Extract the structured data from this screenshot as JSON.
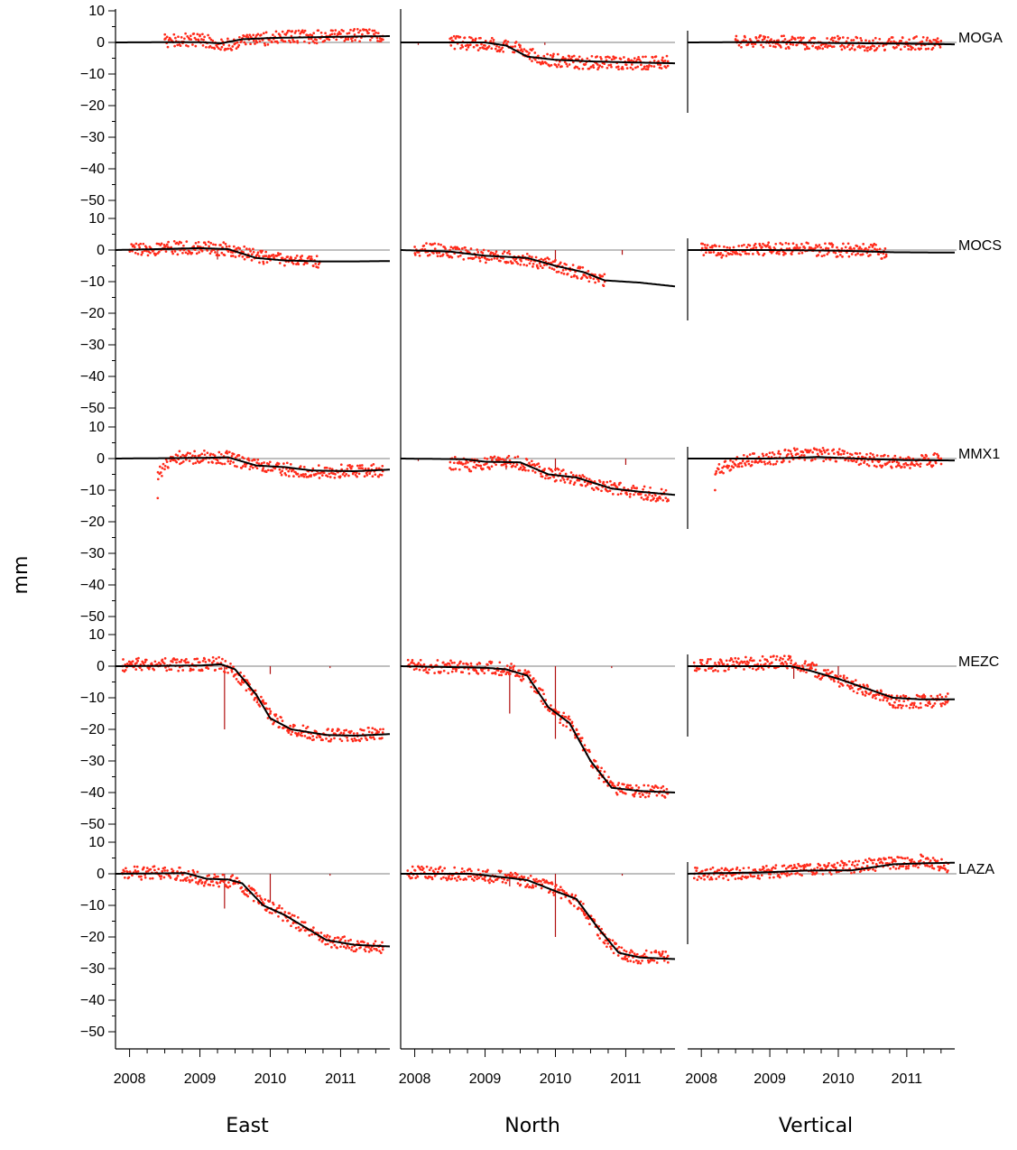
{
  "chart_data": {
    "type": "scatter",
    "ylabel": "mm",
    "columns": [
      "East",
      "North",
      "Vertical"
    ],
    "stations": [
      "MOGA",
      "MOCS",
      "MMX1",
      "MEZC",
      "LAZA"
    ],
    "x_tick_labels": [
      "2008",
      "2009",
      "2010",
      "2011"
    ],
    "x_ticks": [
      2008,
      2009,
      2010,
      2011
    ],
    "xlim": [
      2007.8,
      2011.7
    ],
    "y_ticks": [
      10,
      0,
      -10,
      -20,
      -30,
      -40,
      -50
    ],
    "y_tick_labels": [
      "10",
      "0",
      "−10",
      "−20",
      "−30",
      "−40",
      "−50"
    ],
    "ylim_per_station": [
      -50,
      10
    ],
    "grid": false,
    "colors": {
      "observations": "#ff2a1a",
      "model": "#000000",
      "offsets": "#b01010",
      "axes": "#000000"
    },
    "series": [
      {
        "station": "MOGA",
        "component": "East",
        "model": [
          [
            2007.8,
            0
          ],
          [
            2009.0,
            0.1
          ],
          [
            2009.3,
            -0.3
          ],
          [
            2009.6,
            1.0
          ],
          [
            2010.0,
            1.4
          ],
          [
            2010.5,
            1.6
          ],
          [
            2011.0,
            1.8
          ],
          [
            2011.7,
            2.0
          ]
        ],
        "observations": [
          [
            2008.5,
            1
          ],
          [
            2009.0,
            2
          ],
          [
            2009.4,
            -2
          ],
          [
            2009.8,
            0.5
          ],
          [
            2010.3,
            2
          ],
          [
            2010.8,
            2
          ],
          [
            2011.2,
            2.5
          ],
          [
            2011.6,
            2
          ]
        ],
        "offsets": []
      },
      {
        "station": "MOGA",
        "component": "North",
        "model": [
          [
            2007.8,
            0
          ],
          [
            2009.0,
            0
          ],
          [
            2009.3,
            -1.0
          ],
          [
            2009.6,
            -4.5
          ],
          [
            2010.0,
            -5.5
          ],
          [
            2010.5,
            -6.0
          ],
          [
            2011.0,
            -6.3
          ],
          [
            2011.7,
            -6.6
          ]
        ],
        "observations": [
          [
            2008.5,
            0
          ],
          [
            2009.0,
            -1
          ],
          [
            2009.5,
            -1
          ],
          [
            2009.8,
            -5
          ],
          [
            2010.2,
            -7
          ],
          [
            2010.6,
            -7
          ],
          [
            2011.0,
            -7
          ],
          [
            2011.6,
            -6
          ]
        ],
        "offsets": [
          [
            2008.05,
            -0.8
          ],
          [
            2009.85,
            -0.8
          ]
        ]
      },
      {
        "station": "MOGA",
        "component": "Vertical",
        "model": [
          [
            2007.8,
            0
          ],
          [
            2009.0,
            0.1
          ],
          [
            2010.0,
            -0.2
          ],
          [
            2011.0,
            -0.4
          ],
          [
            2011.7,
            -0.6
          ]
        ],
        "observations": [
          [
            2008.5,
            1
          ],
          [
            2009.0,
            0.5
          ],
          [
            2009.5,
            -0.5
          ],
          [
            2010.0,
            0
          ],
          [
            2010.5,
            -1
          ],
          [
            2011.0,
            0
          ],
          [
            2011.5,
            0.5
          ]
        ],
        "offsets": []
      },
      {
        "station": "MOCS",
        "component": "East",
        "model": [
          [
            2007.8,
            0
          ],
          [
            2009.0,
            0.6
          ],
          [
            2009.4,
            0.3
          ],
          [
            2009.8,
            -2.5
          ],
          [
            2010.2,
            -3.3
          ],
          [
            2010.7,
            -3.6
          ],
          [
            2011.2,
            -3.6
          ],
          [
            2011.7,
            -3.5
          ]
        ],
        "observations": [
          [
            2008.0,
            0
          ],
          [
            2008.5,
            1
          ],
          [
            2009.0,
            1
          ],
          [
            2009.5,
            0
          ],
          [
            2009.9,
            -2
          ],
          [
            2010.3,
            -3
          ],
          [
            2010.7,
            -4
          ]
        ],
        "offsets": [
          [
            2009.25,
            -3
          ]
        ]
      },
      {
        "station": "MOCS",
        "component": "North",
        "model": [
          [
            2007.8,
            0
          ],
          [
            2008.5,
            -0.5
          ],
          [
            2009.0,
            -1.8
          ],
          [
            2009.6,
            -2.5
          ],
          [
            2010.0,
            -5.0
          ],
          [
            2010.4,
            -7.0
          ],
          [
            2010.7,
            -9.6
          ],
          [
            2011.2,
            -10.3
          ],
          [
            2011.7,
            -11.5
          ]
        ],
        "observations": [
          [
            2008.0,
            1
          ],
          [
            2008.5,
            0
          ],
          [
            2009.0,
            -2
          ],
          [
            2009.5,
            -3
          ],
          [
            2010.0,
            -5
          ],
          [
            2010.4,
            -8
          ],
          [
            2010.7,
            -10
          ]
        ],
        "offsets": [
          [
            2010.0,
            -3
          ],
          [
            2010.95,
            -1.5
          ]
        ]
      },
      {
        "station": "MOCS",
        "component": "Vertical",
        "model": [
          [
            2007.8,
            0
          ],
          [
            2009.0,
            0
          ],
          [
            2010.0,
            -0.2
          ],
          [
            2010.8,
            -0.7
          ],
          [
            2011.7,
            -0.8
          ]
        ],
        "observations": [
          [
            2008.0,
            0
          ],
          [
            2008.5,
            -1
          ],
          [
            2009.0,
            1
          ],
          [
            2009.5,
            1
          ],
          [
            2010.0,
            0
          ],
          [
            2010.5,
            1
          ],
          [
            2010.7,
            -2
          ]
        ],
        "offsets": []
      },
      {
        "station": "MMX1",
        "component": "East",
        "model": [
          [
            2007.8,
            0
          ],
          [
            2009.0,
            0.2
          ],
          [
            2009.4,
            0.4
          ],
          [
            2009.8,
            -2.2
          ],
          [
            2010.2,
            -2.7
          ],
          [
            2010.6,
            -3.8
          ],
          [
            2011.2,
            -4.0
          ],
          [
            2011.7,
            -3.5
          ]
        ],
        "observations": [
          [
            2008.4,
            -12.5
          ],
          [
            2008.6,
            0
          ],
          [
            2009.0,
            1
          ],
          [
            2009.4,
            0
          ],
          [
            2009.9,
            -3
          ],
          [
            2010.5,
            -5
          ],
          [
            2011.0,
            -4
          ],
          [
            2011.6,
            -4
          ]
        ],
        "offsets": []
      },
      {
        "station": "MMX1",
        "component": "North",
        "model": [
          [
            2007.8,
            0
          ],
          [
            2008.7,
            -0.2
          ],
          [
            2009.0,
            -1.0
          ],
          [
            2009.5,
            -1.2
          ],
          [
            2009.9,
            -5.0
          ],
          [
            2010.3,
            -6.0
          ],
          [
            2010.8,
            -9.5
          ],
          [
            2011.2,
            -10.5
          ],
          [
            2011.7,
            -11.5
          ]
        ],
        "observations": [
          [
            2008.5,
            -3
          ],
          [
            2008.8,
            -4
          ],
          [
            2009.2,
            -1
          ],
          [
            2009.6,
            -2
          ],
          [
            2010.0,
            -5
          ],
          [
            2010.5,
            -8
          ],
          [
            2011.0,
            -10
          ],
          [
            2011.6,
            -13
          ]
        ],
        "offsets": [
          [
            2008.05,
            -0.8
          ],
          [
            2009.3,
            -3.5
          ],
          [
            2010.0,
            -4
          ],
          [
            2011.0,
            -2
          ]
        ]
      },
      {
        "station": "MMX1",
        "component": "Vertical",
        "model": [
          [
            2007.8,
            0
          ],
          [
            2009.0,
            0
          ],
          [
            2009.7,
            0.5
          ],
          [
            2010.5,
            -0.2
          ],
          [
            2011.0,
            -0.5
          ],
          [
            2011.7,
            -0.6
          ]
        ],
        "observations": [
          [
            2008.2,
            -10
          ],
          [
            2008.5,
            -2
          ],
          [
            2009.0,
            0
          ],
          [
            2009.4,
            3
          ],
          [
            2010.0,
            2
          ],
          [
            2010.5,
            -1
          ],
          [
            2011.0,
            -2
          ],
          [
            2011.5,
            0
          ]
        ],
        "offsets": []
      },
      {
        "station": "MEZC",
        "component": "East",
        "model": [
          [
            2007.8,
            0
          ],
          [
            2009.0,
            0.2
          ],
          [
            2009.3,
            0.6
          ],
          [
            2009.5,
            -1.0
          ],
          [
            2009.8,
            -9.0
          ],
          [
            2010.0,
            -16.5
          ],
          [
            2010.3,
            -20.0
          ],
          [
            2010.8,
            -21.8
          ],
          [
            2011.2,
            -22.0
          ],
          [
            2011.7,
            -21.5
          ]
        ],
        "observations": [
          [
            2007.9,
            0
          ],
          [
            2008.1,
            1
          ],
          [
            2009.3,
            1
          ],
          [
            2009.6,
            -5
          ],
          [
            2009.8,
            -10
          ],
          [
            2010.0,
            -15
          ],
          [
            2010.3,
            -20
          ],
          [
            2010.7,
            -22
          ],
          [
            2011.6,
            -21
          ]
        ],
        "offsets": [
          [
            2009.35,
            -20
          ],
          [
            2010.0,
            -2.5
          ],
          [
            2010.85,
            -0.6
          ]
        ]
      },
      {
        "station": "MEZC",
        "component": "North",
        "model": [
          [
            2007.8,
            0
          ],
          [
            2009.0,
            -0.5
          ],
          [
            2009.3,
            -1.0
          ],
          [
            2009.6,
            -3.0
          ],
          [
            2009.9,
            -13.0
          ],
          [
            2010.2,
            -18.0
          ],
          [
            2010.5,
            -30.0
          ],
          [
            2010.8,
            -38.5
          ],
          [
            2011.2,
            -39.5
          ],
          [
            2011.7,
            -40.0
          ]
        ],
        "observations": [
          [
            2007.9,
            0
          ],
          [
            2008.1,
            0
          ],
          [
            2009.4,
            -1
          ],
          [
            2009.7,
            -5
          ],
          [
            2010.0,
            -15
          ],
          [
            2010.3,
            -20
          ],
          [
            2010.6,
            -33
          ],
          [
            2010.9,
            -39
          ],
          [
            2011.6,
            -40
          ]
        ],
        "offsets": [
          [
            2009.35,
            -15
          ],
          [
            2010.0,
            -23
          ],
          [
            2010.8,
            -0.6
          ]
        ]
      },
      {
        "station": "MEZC",
        "component": "Vertical",
        "model": [
          [
            2007.8,
            0
          ],
          [
            2009.3,
            0
          ],
          [
            2009.6,
            -1.5
          ],
          [
            2010.0,
            -4.0
          ],
          [
            2010.4,
            -7.0
          ],
          [
            2010.8,
            -10.0
          ],
          [
            2011.2,
            -10.5
          ],
          [
            2011.7,
            -10.5
          ]
        ],
        "observations": [
          [
            2007.9,
            0
          ],
          [
            2008.2,
            1
          ],
          [
            2009.3,
            3
          ],
          [
            2009.6,
            0
          ],
          [
            2010.0,
            -5
          ],
          [
            2010.4,
            -8
          ],
          [
            2010.8,
            -13
          ],
          [
            2011.6,
            -11
          ]
        ],
        "offsets": [
          [
            2009.35,
            -4
          ],
          [
            2010.0,
            -3
          ]
        ]
      },
      {
        "station": "LAZA",
        "component": "East",
        "model": [
          [
            2007.8,
            0
          ],
          [
            2008.8,
            0.2
          ],
          [
            2009.1,
            -1.6
          ],
          [
            2009.4,
            -1.8
          ],
          [
            2009.6,
            -3.0
          ],
          [
            2009.9,
            -10.0
          ],
          [
            2010.2,
            -13.0
          ],
          [
            2010.5,
            -17.0
          ],
          [
            2010.8,
            -21.0
          ],
          [
            2011.2,
            -22.5
          ],
          [
            2011.7,
            -23.0
          ]
        ],
        "observations": [
          [
            2007.9,
            0
          ],
          [
            2008.5,
            1
          ],
          [
            2009.0,
            -2
          ],
          [
            2009.5,
            -3
          ],
          [
            2010.2,
            -13
          ],
          [
            2010.5,
            -18
          ],
          [
            2010.8,
            -21
          ],
          [
            2011.6,
            -24
          ]
        ],
        "offsets": [
          [
            2009.35,
            -11
          ],
          [
            2010.0,
            -9
          ],
          [
            2010.85,
            -0.6
          ]
        ]
      },
      {
        "station": "LAZA",
        "component": "North",
        "model": [
          [
            2007.8,
            0
          ],
          [
            2008.8,
            0
          ],
          [
            2009.3,
            -1.2
          ],
          [
            2009.6,
            -2.0
          ],
          [
            2010.0,
            -5.5
          ],
          [
            2010.3,
            -8.0
          ],
          [
            2010.6,
            -17.0
          ],
          [
            2010.9,
            -25.0
          ],
          [
            2011.2,
            -26.5
          ],
          [
            2011.7,
            -27.0
          ]
        ],
        "observations": [
          [
            2007.9,
            1
          ],
          [
            2008.5,
            0
          ],
          [
            2009.0,
            -1
          ],
          [
            2009.5,
            -2
          ],
          [
            2010.0,
            -4
          ],
          [
            2010.4,
            -12
          ],
          [
            2010.7,
            -22
          ],
          [
            2011.0,
            -26
          ],
          [
            2011.6,
            -26
          ]
        ],
        "offsets": [
          [
            2009.35,
            -4
          ],
          [
            2010.0,
            -20
          ],
          [
            2010.95,
            -0.6
          ]
        ]
      },
      {
        "station": "LAZA",
        "component": "Vertical",
        "model": [
          [
            2007.8,
            0
          ],
          [
            2009.0,
            0.5
          ],
          [
            2009.5,
            1.0
          ],
          [
            2010.2,
            1.1
          ],
          [
            2010.8,
            3.0
          ],
          [
            2011.2,
            3.3
          ],
          [
            2011.7,
            3.5
          ]
        ],
        "observations": [
          [
            2007.9,
            0
          ],
          [
            2008.5,
            0
          ],
          [
            2009.0,
            1
          ],
          [
            2009.5,
            2
          ],
          [
            2010.3,
            4
          ],
          [
            2010.8,
            4
          ],
          [
            2011.3,
            5
          ],
          [
            2011.6,
            1
          ]
        ],
        "offsets": []
      }
    ]
  }
}
